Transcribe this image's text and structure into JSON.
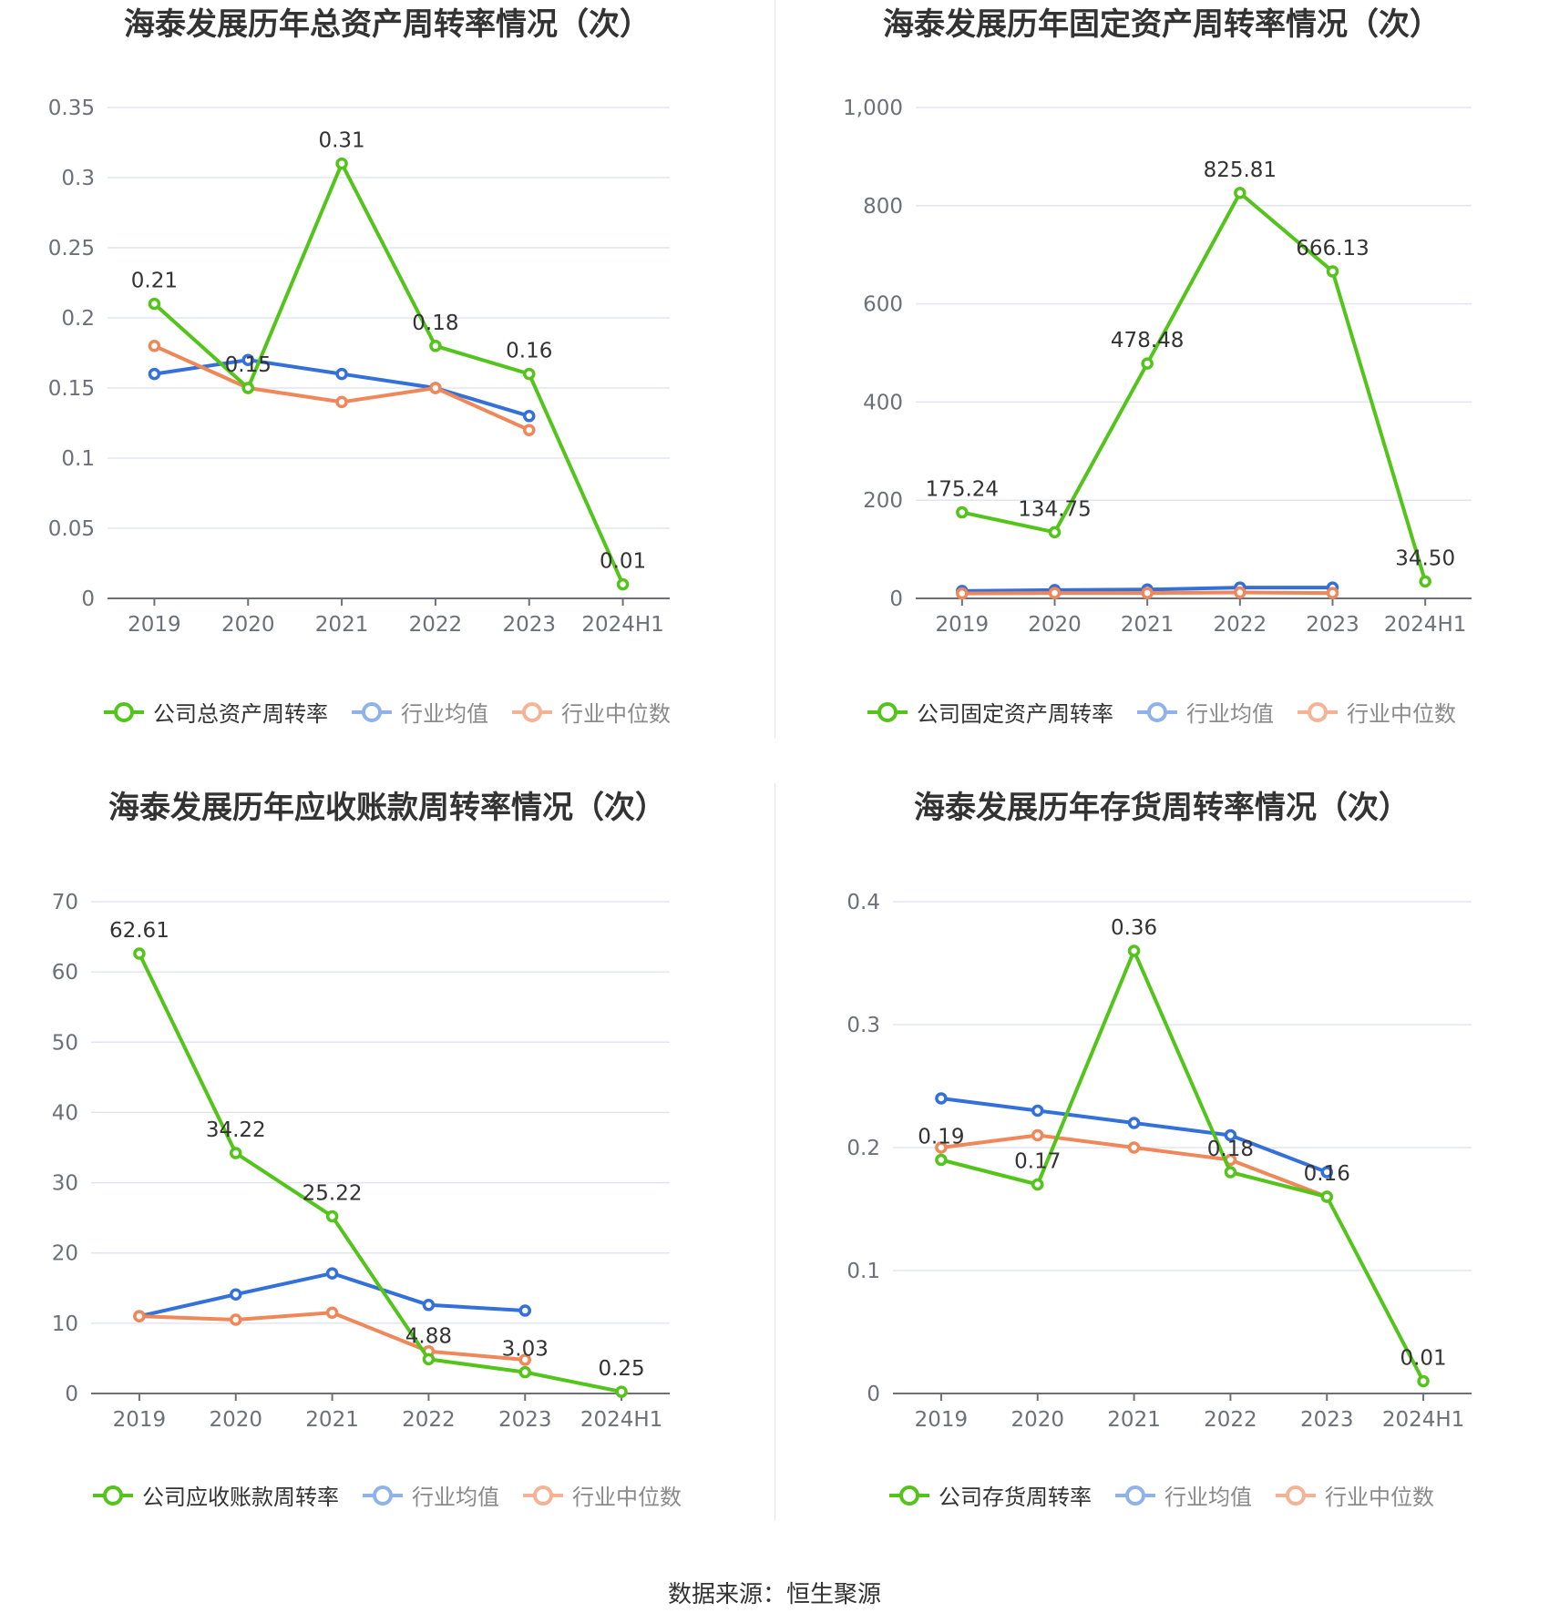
{
  "charts": [
    {
      "title": "海泰发展历年总资产周转率情况（次）",
      "legend": [
        "公司总资产周转率",
        "行业均值",
        "行业中位数"
      ],
      "chart_data": {
        "type": "line",
        "categories": [
          "2019",
          "2020",
          "2021",
          "2022",
          "2023",
          "2024H1"
        ],
        "yticks": [
          "0",
          "0.05",
          "0.1",
          "0.15",
          "0.2",
          "0.25",
          "0.3",
          "0.35"
        ],
        "ylim": [
          0,
          0.35
        ],
        "series": [
          {
            "name": "公司总资产周转率",
            "values": [
              0.21,
              0.15,
              0.31,
              0.18,
              0.16,
              0.01
            ],
            "labels": [
              "0.21",
              "0.15",
              "0.31",
              "0.18",
              "0.16",
              "0.01"
            ]
          },
          {
            "name": "行业均值",
            "values": [
              0.16,
              0.17,
              0.16,
              0.15,
              0.13,
              null
            ]
          },
          {
            "name": "行业中位数",
            "values": [
              0.18,
              0.15,
              0.14,
              0.15,
              0.12,
              null
            ]
          }
        ]
      }
    },
    {
      "title": "海泰发展历年固定资产周转率情况（次）",
      "legend": [
        "公司固定资产周转率",
        "行业均值",
        "行业中位数"
      ],
      "chart_data": {
        "type": "line",
        "categories": [
          "2019",
          "2020",
          "2021",
          "2022",
          "2023",
          "2024H1"
        ],
        "yticks": [
          "0",
          "200",
          "400",
          "600",
          "800",
          "1,000"
        ],
        "ylim": [
          0,
          1000
        ],
        "series": [
          {
            "name": "公司固定资产周转率",
            "values": [
              175.24,
              134.75,
              478.48,
              825.81,
              666.13,
              34.5
            ],
            "labels": [
              "175.24",
              "134.75",
              "478.48",
              "825.81",
              "666.13",
              "34.50"
            ]
          },
          {
            "name": "行业均值",
            "values": [
              15,
              17,
              18,
              22,
              22,
              null
            ]
          },
          {
            "name": "行业中位数",
            "values": [
              10,
              11,
              11,
              12,
              11,
              null
            ]
          }
        ]
      }
    },
    {
      "title": "海泰发展历年应收账款周转率情况（次）",
      "legend": [
        "公司应收账款周转率",
        "行业均值",
        "行业中位数"
      ],
      "chart_data": {
        "type": "line",
        "categories": [
          "2019",
          "2020",
          "2021",
          "2022",
          "2023",
          "2024H1"
        ],
        "yticks": [
          "0",
          "10",
          "20",
          "30",
          "40",
          "50",
          "60",
          "70"
        ],
        "ylim": [
          0,
          70
        ],
        "series": [
          {
            "name": "公司应收账款周转率",
            "values": [
              62.61,
              34.22,
              25.22,
              4.88,
              3.03,
              0.25
            ],
            "labels": [
              "62.61",
              "34.22",
              "25.22",
              "4.88",
              "3.03",
              "0.25"
            ]
          },
          {
            "name": "行业均值",
            "values": [
              11.0,
              14.1,
              17.1,
              12.6,
              11.8,
              null
            ]
          },
          {
            "name": "行业中位数",
            "values": [
              11.0,
              10.5,
              11.5,
              6.0,
              4.8,
              null
            ]
          }
        ]
      }
    },
    {
      "title": "海泰发展历年存货周转率情况（次）",
      "legend": [
        "公司存货周转率",
        "行业均值",
        "行业中位数"
      ],
      "chart_data": {
        "type": "line",
        "categories": [
          "2019",
          "2020",
          "2021",
          "2022",
          "2023",
          "2024H1"
        ],
        "yticks": [
          "0",
          "0.1",
          "0.2",
          "0.3",
          "0.4"
        ],
        "ylim": [
          0,
          0.4
        ],
        "series": [
          {
            "name": "公司存货周转率",
            "values": [
              0.19,
              0.17,
              0.36,
              0.18,
              0.16,
              0.01
            ],
            "labels": [
              "0.19",
              "0.17",
              "0.36",
              "0.18",
              "0.16",
              "0.01"
            ]
          },
          {
            "name": "行业均值",
            "values": [
              0.24,
              0.23,
              0.22,
              0.21,
              0.18,
              null
            ]
          },
          {
            "name": "行业中位数",
            "values": [
              0.2,
              0.21,
              0.2,
              0.19,
              0.16,
              null
            ]
          }
        ]
      }
    }
  ],
  "colors": {
    "company": "#52c41a",
    "mean": "#3370db",
    "median": "#f08759",
    "mean_legend": "#8fb1ec",
    "median_legend": "#f5b295",
    "grid": "#e0e6f1",
    "axis": "#6e7079"
  },
  "source": "数据来源：恒生聚源"
}
